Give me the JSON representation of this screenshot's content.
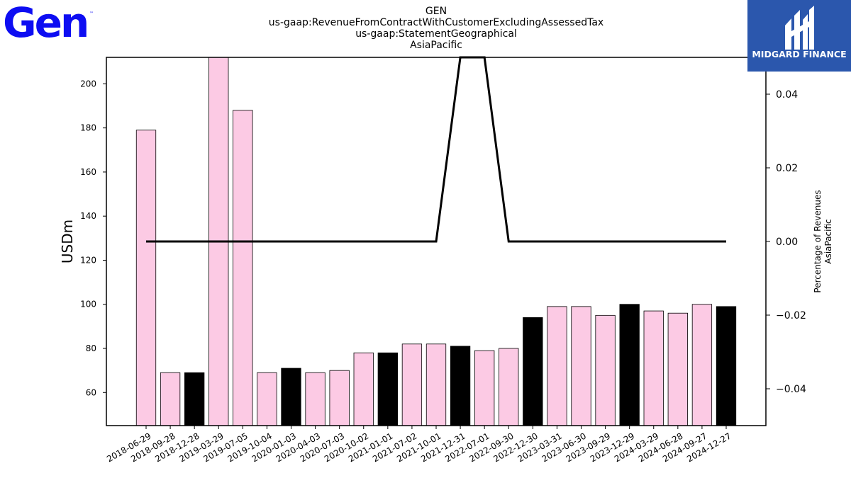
{
  "logo": {
    "text": "Gen",
    "tm": "™",
    "color": "#0d0df2"
  },
  "brand": {
    "text": "MIDGARD FINANCE",
    "bg": "#2b57ad"
  },
  "chart_data": {
    "type": "bar",
    "title_lines": [
      "GEN",
      "us-gaap:RevenueFromContractWithCustomerExcludingAssessedTax",
      "us-gaap:StatementGeographical",
      "AsiaPacific"
    ],
    "ylabel": "USDm",
    "ylabel_right": [
      "Percentage of Revenues",
      "AsiaPacific"
    ],
    "ylim": [
      45,
      212
    ],
    "yticks": [
      60,
      80,
      100,
      120,
      140,
      160,
      180,
      200
    ],
    "ylim_right": [
      -0.05,
      0.05
    ],
    "yticks_right": [
      0.04,
      0.02,
      0.0,
      -0.02,
      -0.04
    ],
    "yticks_right_labels": [
      "0.04",
      "0.02",
      "0.00",
      "−0.02",
      "−0.04"
    ],
    "categories": [
      "2018-06-29",
      "2018-09-28",
      "2018-12-28",
      "2019-03-29",
      "2019-07-05",
      "2019-10-04",
      "2020-01-03",
      "2020-04-03",
      "2020-07-03",
      "2020-10-02",
      "2021-01-01",
      "2021-07-02",
      "2021-10-01",
      "2021-12-31",
      "2022-07-01",
      "2022-09-30",
      "2022-12-30",
      "2023-03-31",
      "2023-06-30",
      "2023-09-29",
      "2023-12-29",
      "2024-03-29",
      "2024-06-28",
      "2024-09-27",
      "2024-12-27"
    ],
    "values": [
      179,
      69,
      69,
      212,
      188,
      69,
      71,
      69,
      70,
      78,
      78,
      82,
      82,
      81,
      79,
      80,
      94,
      99,
      99,
      95,
      100,
      97,
      96,
      100,
      99
    ],
    "highlight": [
      false,
      false,
      true,
      false,
      false,
      false,
      true,
      false,
      false,
      false,
      true,
      false,
      false,
      true,
      false,
      false,
      true,
      false,
      false,
      false,
      true,
      false,
      false,
      false,
      true
    ],
    "colors": {
      "bar": "#fccae4",
      "highlight": "#000000",
      "edge": "#000000",
      "line": "#000000"
    },
    "line_series": {
      "axis": "right",
      "values": [
        0,
        0,
        0,
        0,
        0,
        0,
        0,
        0,
        0,
        0,
        0,
        0,
        0,
        null,
        null,
        0,
        0,
        0,
        0,
        0,
        0,
        0,
        0,
        0,
        0
      ]
    },
    "grid": false,
    "legend": "none"
  }
}
